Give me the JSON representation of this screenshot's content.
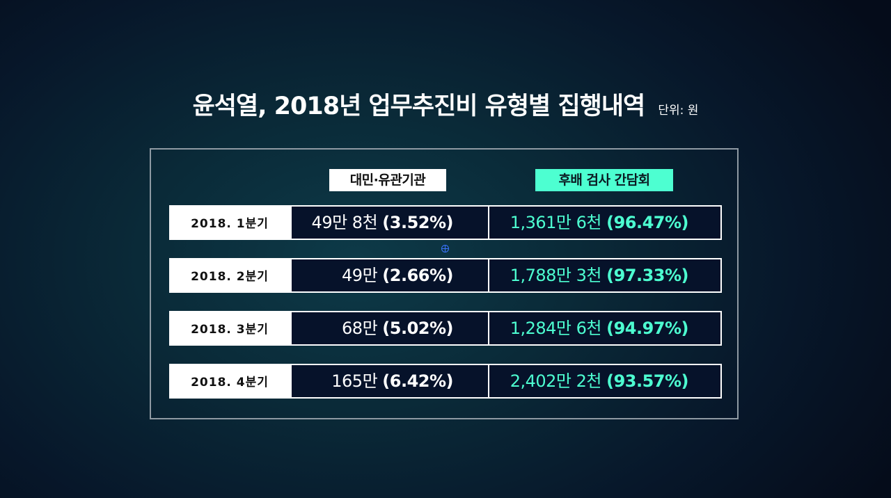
{
  "chart_data": {
    "type": "table",
    "title": "윤석열, 2018년 업무추진비 유형별 집행내역",
    "unit": "단위: 원",
    "columns": [
      "대민·유관기관",
      "후배 검사 간담회"
    ],
    "rows": [
      {
        "label": "2018. 1분기",
        "a_amount": "49만 8천",
        "a_pct": "(3.52%)",
        "b_amount": "1,361만 6천",
        "b_pct": "(96.47%)"
      },
      {
        "label": "2018. 2분기",
        "a_amount": "49만",
        "a_pct": "(2.66%)",
        "b_amount": "1,788만 3천",
        "b_pct": "(97.33%)"
      },
      {
        "label": "2018. 3분기",
        "a_amount": "68만",
        "a_pct": "(5.02%)",
        "b_amount": "1,284만 6천",
        "b_pct": "(94.97%)"
      },
      {
        "label": "2018. 4분기",
        "a_amount": "165만",
        "a_pct": "(6.42%)",
        "b_amount": "2,402만 2천",
        "b_pct": "(93.57%)"
      }
    ],
    "colors": {
      "accent": "#4dffd1",
      "label_bg": "#ffffff",
      "cell_bg": "#06122a"
    }
  }
}
